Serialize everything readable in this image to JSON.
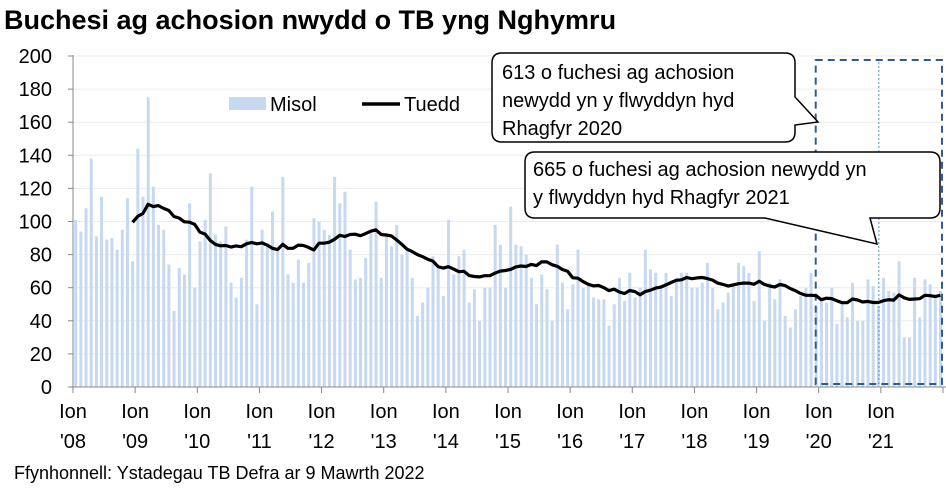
{
  "chart_data": {
    "type": "bar",
    "title": "Buchesi ag achosion nwydd o TB yng Nghymru",
    "source": "Ffynhonnell: Ystadegau TB Defra ar 9 Mawrth 2022",
    "ylim": [
      0,
      200
    ],
    "yticks": [
      "0",
      "20",
      "40",
      "60",
      "80",
      "100",
      "120",
      "140",
      "160",
      "180",
      "200"
    ],
    "xticks": [
      {
        "l1": "Ion",
        "l2": "'08"
      },
      {
        "l1": "Ion",
        "l2": "'09"
      },
      {
        "l1": "Ion",
        "l2": "'10"
      },
      {
        "l1": "Ion",
        "l2": "'11"
      },
      {
        "l1": "Ion",
        "l2": "'12"
      },
      {
        "l1": "Ion",
        "l2": "'13"
      },
      {
        "l1": "Ion",
        "l2": "'14"
      },
      {
        "l1": "Ion",
        "l2": "'15"
      },
      {
        "l1": "Ion",
        "l2": "'16"
      },
      {
        "l1": "Ion",
        "l2": "'17"
      },
      {
        "l1": "Ion",
        "l2": "'18"
      },
      {
        "l1": "Ion",
        "l2": "'19"
      },
      {
        "l1": "Ion",
        "l2": "'20"
      },
      {
        "l1": "Ion",
        "l2": "'21"
      }
    ],
    "x_start": "2008-01",
    "x_end": "2021-12",
    "grid": true,
    "legend_position": "top-left",
    "series": [
      {
        "name": "Misol",
        "type": "bar",
        "color": "#c6d9f1",
        "values": [
          101,
          94,
          108,
          138,
          91,
          115,
          89,
          90,
          83,
          95,
          114,
          76,
          144,
          115,
          175,
          121,
          98,
          95,
          74,
          46,
          72,
          68,
          111,
          60,
          88,
          101,
          129,
          92,
          88,
          97,
          63,
          54,
          66,
          89,
          121,
          50,
          95,
          85,
          106,
          82,
          127,
          68,
          63,
          77,
          63,
          75,
          102,
          100,
          95,
          92,
          127,
          111,
          118,
          83,
          65,
          66,
          78,
          93,
          112,
          66,
          91,
          85,
          98,
          80,
          82,
          66,
          43,
          51,
          60,
          79,
          72,
          55,
          101,
          68,
          79,
          83,
          51,
          59,
          40,
          60,
          60,
          98,
          86,
          60,
          109,
          86,
          85,
          80,
          66,
          50,
          68,
          59,
          40,
          86,
          63,
          47,
          62,
          83,
          60,
          61,
          54,
          53,
          53,
          37,
          50,
          66,
          52,
          69,
          54,
          60,
          83,
          71,
          69,
          60,
          69,
          55,
          66,
          69,
          69,
          60,
          60,
          63,
          75,
          60,
          47,
          51,
          57,
          63,
          75,
          73,
          69,
          52,
          82,
          40,
          63,
          53,
          65,
          43,
          36,
          47,
          55,
          60,
          69,
          49,
          53,
          51,
          60,
          38,
          51,
          42,
          63,
          40,
          40,
          65,
          61,
          49,
          66,
          58,
          57,
          76,
          30,
          30,
          66,
          42,
          65,
          62,
          55,
          58
        ]
      },
      {
        "name": "Tuedd",
        "type": "line",
        "color": "#000000",
        "rolling_window_months": 12
      }
    ],
    "annotations": [
      {
        "text_lines": [
          "613 o fuchesi ag achosion",
          "newydd yn y flwyddyn hyd",
          "Rhagfyr 2020"
        ]
      },
      {
        "text_lines": [
          "665 o fuchesi ag achosion newydd yn",
          "y flwyddyn hyd Rhagfyr 2021"
        ]
      }
    ],
    "highlight_color": "#2f5b8f"
  }
}
